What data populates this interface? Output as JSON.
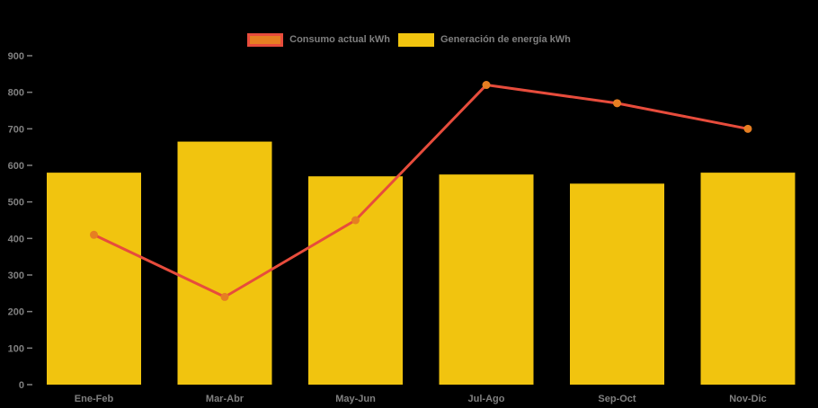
{
  "background": "#000000",
  "axis_text_color": "#808080",
  "chart_data": {
    "type": "bar+line",
    "title": "",
    "categories": [
      "Ene-Feb",
      "Mar-Abr",
      "May-Jun",
      "Jul-Ago",
      "Sep-Oct",
      "Nov-Dic"
    ],
    "series": [
      {
        "name": "Consumo actual kWh",
        "type": "line",
        "color": "#e74c3c",
        "marker_color": "#e67e22",
        "values": [
          410,
          240,
          450,
          820,
          770,
          700
        ]
      },
      {
        "name": "Generación de energía kWh",
        "type": "bar",
        "color": "#f1c40f",
        "values": [
          580,
          665,
          570,
          575,
          550,
          580
        ]
      }
    ],
    "ylim": [
      0,
      900
    ],
    "yticks": [
      0,
      100,
      200,
      300,
      400,
      500,
      600,
      700,
      800,
      900
    ],
    "grid": false,
    "legend_position": "top-center"
  }
}
